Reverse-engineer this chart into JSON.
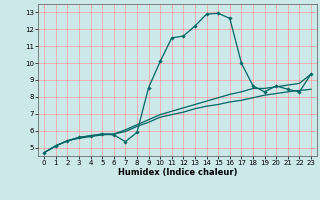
{
  "title": "",
  "xlabel": "Humidex (Indice chaleur)",
  "bg_color": "#cce8e8",
  "grid_color": "#ff9999",
  "line_color": "#006666",
  "xlim": [
    -0.5,
    23.5
  ],
  "ylim": [
    4.5,
    13.5
  ],
  "xticks": [
    0,
    1,
    2,
    3,
    4,
    5,
    6,
    7,
    8,
    9,
    10,
    11,
    12,
    13,
    14,
    15,
    16,
    17,
    18,
    19,
    20,
    21,
    22,
    23
  ],
  "yticks": [
    5,
    6,
    7,
    8,
    9,
    10,
    11,
    12,
    13
  ],
  "curve1_x": [
    0,
    1,
    2,
    3,
    4,
    5,
    6,
    7,
    8,
    9,
    10,
    11,
    12,
    13,
    14,
    15,
    16,
    17,
    18,
    19,
    20,
    21,
    22,
    23
  ],
  "curve1_y": [
    4.7,
    5.1,
    5.4,
    5.6,
    5.7,
    5.8,
    5.75,
    5.35,
    5.9,
    8.55,
    10.1,
    11.5,
    11.6,
    12.2,
    12.9,
    12.95,
    12.65,
    10.0,
    8.65,
    8.3,
    8.65,
    8.45,
    8.3,
    9.35
  ],
  "curve2_x": [
    0,
    1,
    2,
    3,
    4,
    5,
    6,
    7,
    8,
    9,
    10,
    11,
    12,
    13,
    14,
    15,
    16,
    17,
    18,
    19,
    20,
    21,
    22,
    23
  ],
  "curve2_y": [
    4.7,
    5.1,
    5.4,
    5.6,
    5.7,
    5.8,
    5.8,
    6.05,
    6.35,
    6.65,
    6.95,
    7.15,
    7.35,
    7.55,
    7.75,
    7.95,
    8.15,
    8.3,
    8.5,
    8.5,
    8.6,
    8.7,
    8.8,
    9.35
  ],
  "curve3_x": [
    0,
    1,
    2,
    3,
    4,
    5,
    6,
    7,
    8,
    9,
    10,
    11,
    12,
    13,
    14,
    15,
    16,
    17,
    18,
    19,
    20,
    21,
    22,
    23
  ],
  "curve3_y": [
    4.7,
    5.1,
    5.4,
    5.55,
    5.65,
    5.75,
    5.8,
    5.95,
    6.25,
    6.5,
    6.8,
    6.95,
    7.1,
    7.3,
    7.45,
    7.55,
    7.7,
    7.8,
    7.95,
    8.1,
    8.2,
    8.3,
    8.38,
    8.45
  ],
  "xlabel_fontsize": 6.0,
  "tick_fontsize": 5.0
}
